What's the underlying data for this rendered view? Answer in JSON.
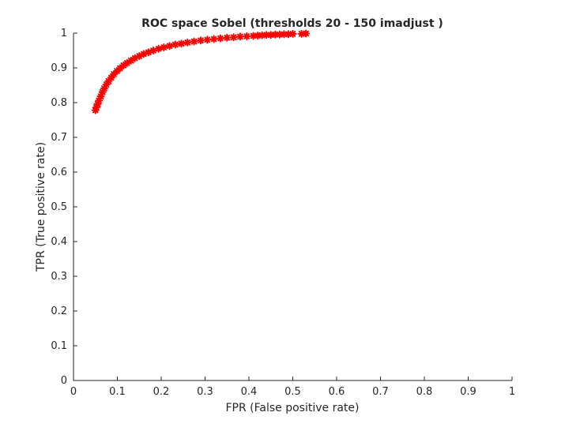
{
  "chart_data": {
    "type": "scatter",
    "title": "ROC space Sobel (thresholds 20 - 150  imadjust )",
    "xlabel": "FPR (False positive rate)",
    "ylabel": "TPR (True positive rate)",
    "xlim": [
      0,
      1
    ],
    "ylim": [
      0,
      1
    ],
    "xticks": [
      "0",
      "0.1",
      "0.2",
      "0.3",
      "0.4",
      "0.5",
      "0.6",
      "0.7",
      "0.8",
      "0.9",
      "1"
    ],
    "yticks": [
      "0",
      "0.1",
      "0.2",
      "0.3",
      "0.4",
      "0.5",
      "0.6",
      "0.7",
      "0.8",
      "0.9",
      "1"
    ],
    "grid": false,
    "legend": "none",
    "marker": "*",
    "marker_color": "#ff0000",
    "series": [
      {
        "x": [
          0.05,
          0.052,
          0.055,
          0.058,
          0.062,
          0.066,
          0.07,
          0.075,
          0.08,
          0.086,
          0.092,
          0.099,
          0.106,
          0.114,
          0.122,
          0.131,
          0.14,
          0.15,
          0.16,
          0.171,
          0.182,
          0.194,
          0.206,
          0.219,
          0.232,
          0.246,
          0.26,
          0.275,
          0.29,
          0.305,
          0.32,
          0.335,
          0.35,
          0.365,
          0.38,
          0.395,
          0.41,
          0.42,
          0.43,
          0.44,
          0.45,
          0.46,
          0.47,
          0.48,
          0.49,
          0.5,
          0.52,
          0.53
        ],
        "y": [
          0.778,
          0.786,
          0.796,
          0.806,
          0.818,
          0.83,
          0.841,
          0.852,
          0.862,
          0.872,
          0.882,
          0.891,
          0.899,
          0.907,
          0.914,
          0.921,
          0.928,
          0.934,
          0.94,
          0.945,
          0.95,
          0.955,
          0.959,
          0.963,
          0.967,
          0.97,
          0.973,
          0.976,
          0.979,
          0.981,
          0.983,
          0.985,
          0.987,
          0.988,
          0.99,
          0.991,
          0.992,
          0.993,
          0.994,
          0.995,
          0.995,
          0.996,
          0.996,
          0.997,
          0.997,
          0.998,
          0.998,
          0.999
        ]
      }
    ]
  }
}
